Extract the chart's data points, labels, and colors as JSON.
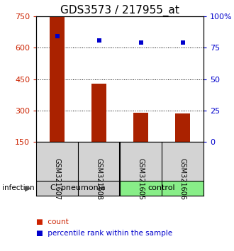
{
  "title": "GDS3573 / 217955_at",
  "samples": [
    "GSM321607",
    "GSM321608",
    "GSM321605",
    "GSM321606"
  ],
  "counts": [
    750,
    430,
    290,
    285
  ],
  "percentiles": [
    84,
    81,
    79,
    79
  ],
  "count_baseline": 150,
  "ylim_left": [
    150,
    750
  ],
  "ylim_right": [
    0,
    100
  ],
  "yticks_left": [
    150,
    300,
    450,
    600,
    750
  ],
  "yticks_right": [
    0,
    25,
    50,
    75,
    100
  ],
  "ytick_labels_right": [
    "0",
    "25",
    "50",
    "75",
    "100%"
  ],
  "bar_color": "#aa2200",
  "dot_color": "#0000cc",
  "group_labels": [
    "C. pneumonia",
    "control"
  ],
  "group_colors_hex": [
    "#cccccc",
    "#88ee88"
  ],
  "infection_label": "infection",
  "legend_items": [
    "count",
    "percentile rank within the sample"
  ],
  "legend_colors": [
    "#cc2200",
    "#0000cc"
  ],
  "title_fontsize": 11,
  "tick_fontsize": 8,
  "sample_fontsize": 7,
  "group_fontsize": 8,
  "legend_fontsize": 7.5
}
